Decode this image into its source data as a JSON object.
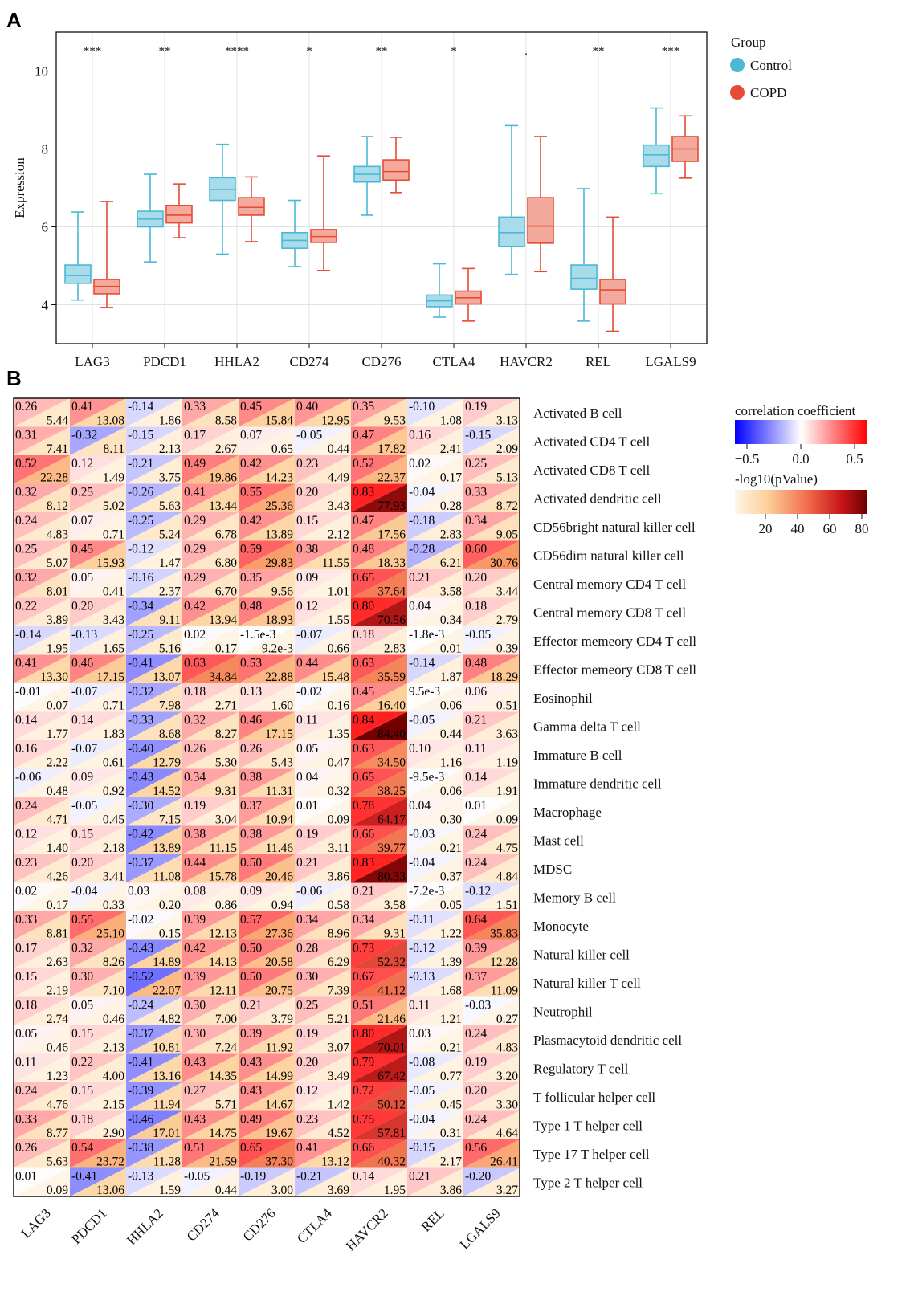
{
  "panel_a": {
    "letter": "A",
    "legend": {
      "title": "Group",
      "items": [
        {
          "label": "Control",
          "color": "#4bb9d4"
        },
        {
          "label": "COPD",
          "color": "#e64b35"
        }
      ]
    }
  },
  "panel_b": {
    "letter": "B",
    "legend_corr": {
      "title": "correlation coefficient",
      "ticks": [
        "−0.5",
        "0.0",
        "0.5"
      ]
    },
    "legend_p": {
      "title": "-log10(pValue)",
      "ticks": [
        "20",
        "40",
        "60",
        "80"
      ]
    }
  },
  "chart_data": [
    {
      "type": "box",
      "ylabel": "Expression",
      "ylim": [
        3.0,
        11.0
      ],
      "yticks": [
        4,
        6,
        8,
        10
      ],
      "categories": [
        "LAG3",
        "PDCD1",
        "HHLA2",
        "CD274",
        "CD276",
        "CTLA4",
        "HAVCR2",
        "REL",
        "LGALS9"
      ],
      "significance": [
        "***",
        "**",
        "****",
        "*",
        "**",
        "*",
        ".",
        "**",
        "***"
      ],
      "series": [
        {
          "name": "Control",
          "color": "#4bb9d4",
          "boxes": [
            {
              "min": 4.12,
              "q1": 4.55,
              "median": 4.75,
              "q3": 5.02,
              "max": 6.38
            },
            {
              "min": 5.1,
              "q1": 6.0,
              "median": 6.2,
              "q3": 6.4,
              "max": 7.35
            },
            {
              "min": 5.3,
              "q1": 6.68,
              "median": 6.96,
              "q3": 7.26,
              "max": 8.12
            },
            {
              "min": 4.98,
              "q1": 5.45,
              "median": 5.65,
              "q3": 5.85,
              "max": 6.68
            },
            {
              "min": 6.3,
              "q1": 7.15,
              "median": 7.35,
              "q3": 7.55,
              "max": 8.32
            },
            {
              "min": 3.68,
              "q1": 3.95,
              "median": 4.1,
              "q3": 4.25,
              "max": 5.05
            },
            {
              "min": 4.78,
              "q1": 5.5,
              "median": 5.85,
              "q3": 6.25,
              "max": 8.6
            },
            {
              "min": 3.58,
              "q1": 4.4,
              "median": 4.68,
              "q3": 5.02,
              "max": 6.98
            },
            {
              "min": 6.85,
              "q1": 7.55,
              "median": 7.85,
              "q3": 8.1,
              "max": 9.05
            }
          ]
        },
        {
          "name": "COPD",
          "color": "#e64b35",
          "boxes": [
            {
              "min": 3.93,
              "q1": 4.28,
              "median": 4.47,
              "q3": 4.65,
              "max": 6.65
            },
            {
              "min": 5.72,
              "q1": 6.1,
              "median": 6.3,
              "q3": 6.55,
              "max": 7.1
            },
            {
              "min": 5.62,
              "q1": 6.3,
              "median": 6.5,
              "q3": 6.75,
              "max": 7.28
            },
            {
              "min": 4.88,
              "q1": 5.6,
              "median": 5.75,
              "q3": 5.93,
              "max": 7.82
            },
            {
              "min": 6.88,
              "q1": 7.2,
              "median": 7.42,
              "q3": 7.72,
              "max": 8.3
            },
            {
              "min": 3.58,
              "q1": 4.02,
              "median": 4.18,
              "q3": 4.35,
              "max": 4.93
            },
            {
              "min": 4.85,
              "q1": 5.58,
              "median": 6.02,
              "q3": 6.75,
              "max": 8.32
            },
            {
              "min": 3.32,
              "q1": 4.02,
              "median": 4.38,
              "q3": 4.65,
              "max": 6.25
            },
            {
              "min": 7.25,
              "q1": 7.68,
              "median": 8.0,
              "q3": 8.32,
              "max": 8.85
            }
          ]
        }
      ]
    },
    {
      "type": "heatmap",
      "columns": [
        "LAG3",
        "PDCD1",
        "HHLA2",
        "CD274",
        "CD276",
        "CTLA4",
        "HAVCR2",
        "REL",
        "LGALS9"
      ],
      "rows": [
        {
          "name": "Activated B cell",
          "r": [
            "0.26",
            "0.41",
            "-0.14",
            "0.33",
            "0.45",
            "0.40",
            "0.35",
            "-0.10",
            "0.19"
          ],
          "p": [
            "5.44",
            "13.08",
            "1.86",
            "8.58",
            "15.84",
            "12.95",
            "9.53",
            "1.08",
            "3.13"
          ]
        },
        {
          "name": "Activated CD4 T cell",
          "r": [
            "0.31",
            "-0.32",
            "-0.15",
            "0.17",
            "0.07",
            "-0.05",
            "0.47",
            "0.16",
            "-0.15"
          ],
          "p": [
            "7.41",
            "8.11",
            "2.13",
            "2.67",
            "0.65",
            "0.44",
            "17.82",
            "2.41",
            "2.09"
          ]
        },
        {
          "name": "Activated CD8 T cell",
          "r": [
            "0.52",
            "0.12",
            "-0.21",
            "0.49",
            "0.42",
            "0.23",
            "0.52",
            "0.02",
            "0.25"
          ],
          "p": [
            "22.28",
            "1.49",
            "3.75",
            "19.86",
            "14.23",
            "4.49",
            "22.37",
            "0.17",
            "5.13"
          ]
        },
        {
          "name": "Activated dendritic cell",
          "r": [
            "0.32",
            "0.25",
            "-0.26",
            "0.41",
            "0.55",
            "0.20",
            "0.83",
            "-0.04",
            "0.33"
          ],
          "p": [
            "8.12",
            "5.02",
            "5.63",
            "13.44",
            "25.36",
            "3.43",
            "77.93",
            "0.28",
            "8.72"
          ]
        },
        {
          "name": "CD56bright natural killer cell",
          "r": [
            "0.24",
            "0.07",
            "-0.25",
            "0.29",
            "0.42",
            "0.15",
            "0.47",
            "-0.18",
            "0.34"
          ],
          "p": [
            "4.83",
            "0.71",
            "5.24",
            "6.78",
            "13.89",
            "2.12",
            "17.56",
            "2.83",
            "9.05"
          ]
        },
        {
          "name": "CD56dim natural killer cell",
          "r": [
            "0.25",
            "0.45",
            "-0.12",
            "0.29",
            "0.59",
            "0.38",
            "0.48",
            "-0.28",
            "0.60"
          ],
          "p": [
            "5.07",
            "15.93",
            "1.47",
            "6.80",
            "29.83",
            "11.55",
            "18.33",
            "6.21",
            "30.76"
          ]
        },
        {
          "name": "Central memory CD4 T cell",
          "r": [
            "0.32",
            "0.05",
            "-0.16",
            "0.29",
            "0.35",
            "0.09",
            "0.65",
            "0.21",
            "0.20"
          ],
          "p": [
            "8.01",
            "0.41",
            "2.37",
            "6.70",
            "9.56",
            "1.01",
            "37.64",
            "3.58",
            "3.44"
          ]
        },
        {
          "name": "Central memory CD8 T cell",
          "r": [
            "0.22",
            "0.20",
            "-0.34",
            "0.42",
            "0.48",
            "0.12",
            "0.80",
            "0.04",
            "0.18"
          ],
          "p": [
            "3.89",
            "3.43",
            "9.11",
            "13.94",
            "18.93",
            "1.55",
            "70.56",
            "0.34",
            "2.79"
          ]
        },
        {
          "name": "Effector memeory CD4 T cell",
          "r": [
            "-0.14",
            "-0.13",
            "-0.25",
            "0.02",
            "-1.5e-3",
            "-0.07",
            "0.18",
            "-1.8e-3",
            "-0.05"
          ],
          "p": [
            "1.95",
            "1.65",
            "5.16",
            "0.17",
            "9.2e-3",
            "0.66",
            "2.83",
            "0.01",
            "0.39"
          ]
        },
        {
          "name": "Effector memeory CD8 T cell",
          "r": [
            "0.41",
            "0.46",
            "-0.41",
            "0.63",
            "0.53",
            "0.44",
            "0.63",
            "-0.14",
            "0.48"
          ],
          "p": [
            "13.30",
            "17.15",
            "13.07",
            "34.84",
            "22.88",
            "15.48",
            "35.59",
            "1.87",
            "18.29"
          ]
        },
        {
          "name": "Eosinophil",
          "r": [
            "-0.01",
            "-0.07",
            "-0.32",
            "0.18",
            "0.13",
            "-0.02",
            "0.45",
            "9.5e-3",
            "0.06"
          ],
          "p": [
            "0.07",
            "0.71",
            "7.98",
            "2.71",
            "1.60",
            "0.16",
            "16.40",
            "0.06",
            "0.51"
          ]
        },
        {
          "name": "Gamma delta T cell",
          "r": [
            "0.14",
            "0.14",
            "-0.33",
            "0.32",
            "0.46",
            "0.11",
            "0.84",
            "-0.05",
            "0.21"
          ],
          "p": [
            "1.77",
            "1.83",
            "8.68",
            "8.27",
            "17.15",
            "1.35",
            "84.40",
            "0.44",
            "3.63"
          ]
        },
        {
          "name": "Immature B cell",
          "r": [
            "0.16",
            "-0.07",
            "-0.40",
            "0.26",
            "0.26",
            "0.05",
            "0.63",
            "0.10",
            "0.11"
          ],
          "p": [
            "2.22",
            "0.61",
            "12.79",
            "5.30",
            "5.43",
            "0.47",
            "34.50",
            "1.16",
            "1.19"
          ]
        },
        {
          "name": "Immature dendritic cell",
          "r": [
            "-0.06",
            "0.09",
            "-0.43",
            "0.34",
            "0.38",
            "0.04",
            "0.65",
            "-9.5e-3",
            "0.14"
          ],
          "p": [
            "0.48",
            "0.92",
            "14.52",
            "9.31",
            "11.31",
            "0.32",
            "38.25",
            "0.06",
            "1.91"
          ]
        },
        {
          "name": "Macrophage",
          "r": [
            "0.24",
            "-0.05",
            "-0.30",
            "0.19",
            "0.37",
            "0.01",
            "0.78",
            "0.04",
            "0.01"
          ],
          "p": [
            "4.71",
            "0.45",
            "7.15",
            "3.04",
            "10.94",
            "0.09",
            "64.17",
            "0.30",
            "0.09"
          ]
        },
        {
          "name": "Mast cell",
          "r": [
            "0.12",
            "0.15",
            "-0.42",
            "0.38",
            "0.38",
            "0.19",
            "0.66",
            "-0.03",
            "0.24"
          ],
          "p": [
            "1.40",
            "2.18",
            "13.89",
            "11.15",
            "11.46",
            "3.11",
            "39.77",
            "0.21",
            "4.75"
          ]
        },
        {
          "name": "MDSC",
          "r": [
            "0.23",
            "0.20",
            "-0.37",
            "0.44",
            "0.50",
            "0.21",
            "0.83",
            "-0.04",
            "0.24"
          ],
          "p": [
            "4.26",
            "3.41",
            "11.08",
            "15.78",
            "20.46",
            "3.86",
            "80.33",
            "0.37",
            "4.84"
          ]
        },
        {
          "name": "Memory B cell",
          "r": [
            "0.02",
            "-0.04",
            "0.03",
            "0.08",
            "0.09",
            "-0.06",
            "0.21",
            "-7.2e-3",
            "-0.12"
          ],
          "p": [
            "0.17",
            "0.33",
            "0.20",
            "0.86",
            "0.94",
            "0.58",
            "3.58",
            "0.05",
            "1.51"
          ]
        },
        {
          "name": "Monocyte",
          "r": [
            "0.33",
            "0.55",
            "-0.02",
            "0.39",
            "0.57",
            "0.34",
            "0.34",
            "-0.11",
            "0.64"
          ],
          "p": [
            "8.81",
            "25.10",
            "0.15",
            "12.13",
            "27.36",
            "8.96",
            "9.31",
            "1.22",
            "35.83"
          ]
        },
        {
          "name": "Natural killer cell",
          "r": [
            "0.17",
            "0.32",
            "-0.43",
            "0.42",
            "0.50",
            "0.28",
            "0.73",
            "-0.12",
            "0.39"
          ],
          "p": [
            "2.63",
            "8.26",
            "14.89",
            "14.13",
            "20.58",
            "6.29",
            "52.32",
            "1.39",
            "12.28"
          ]
        },
        {
          "name": "Natural killer T cell",
          "r": [
            "0.15",
            "0.30",
            "-0.52",
            "0.39",
            "0.50",
            "0.30",
            "0.67",
            "-0.13",
            "0.37"
          ],
          "p": [
            "2.19",
            "7.10",
            "22.07",
            "12.11",
            "20.75",
            "7.39",
            "41.12",
            "1.68",
            "11.09"
          ]
        },
        {
          "name": "Neutrophil",
          "r": [
            "0.18",
            "0.05",
            "-0.24",
            "0.30",
            "0.21",
            "0.25",
            "0.51",
            "0.11",
            "-0.03"
          ],
          "p": [
            "2.74",
            "0.46",
            "4.82",
            "7.00",
            "3.79",
            "5.21",
            "21.46",
            "1.21",
            "0.27"
          ]
        },
        {
          "name": "Plasmacytoid dendritic cell",
          "r": [
            "0.05",
            "0.15",
            "-0.37",
            "0.30",
            "0.39",
            "0.19",
            "0.80",
            "0.03",
            "0.24"
          ],
          "p": [
            "0.46",
            "2.13",
            "10.81",
            "7.24",
            "11.92",
            "3.07",
            "70.01",
            "0.21",
            "4.83"
          ]
        },
        {
          "name": "Regulatory T cell",
          "r": [
            "0.11",
            "0.22",
            "-0.41",
            "0.43",
            "0.43",
            "0.20",
            "0.79",
            "-0.08",
            "0.19"
          ],
          "p": [
            "1.23",
            "4.00",
            "13.16",
            "14.35",
            "14.99",
            "3.49",
            "67.42",
            "0.77",
            "3.20"
          ]
        },
        {
          "name": "T follicular helper cell",
          "r": [
            "0.24",
            "0.15",
            "-0.39",
            "0.27",
            "0.43",
            "0.12",
            "0.72",
            "-0.05",
            "0.20"
          ],
          "p": [
            "4.76",
            "2.15",
            "11.94",
            "5.71",
            "14.67",
            "1.42",
            "50.12",
            "0.45",
            "3.30"
          ]
        },
        {
          "name": "Type 1 T helper cell",
          "r": [
            "0.33",
            "0.18",
            "-0.46",
            "0.43",
            "0.49",
            "0.23",
            "0.75",
            "-0.04",
            "0.24"
          ],
          "p": [
            "8.77",
            "2.90",
            "17.01",
            "14.75",
            "19.67",
            "4.52",
            "57.81",
            "0.31",
            "4.64"
          ]
        },
        {
          "name": "Type 17 T helper cell",
          "r": [
            "0.26",
            "0.54",
            "-0.38",
            "0.51",
            "0.65",
            "0.41",
            "0.66",
            "-0.15",
            "0.56"
          ],
          "p": [
            "5.63",
            "23.72",
            "11.28",
            "21.59",
            "37.30",
            "13.12",
            "40.32",
            "2.17",
            "26.41"
          ]
        },
        {
          "name": "Type 2 T helper cell",
          "r": [
            "0.01",
            "-0.41",
            "-0.13",
            "-0.05",
            "-0.19",
            "-0.21",
            "0.14",
            "0.21",
            "-0.20"
          ],
          "p": [
            "0.09",
            "13.06",
            "1.59",
            "0.44",
            "3.00",
            "3.69",
            "1.95",
            "3.86",
            "3.27"
          ]
        }
      ]
    }
  ]
}
